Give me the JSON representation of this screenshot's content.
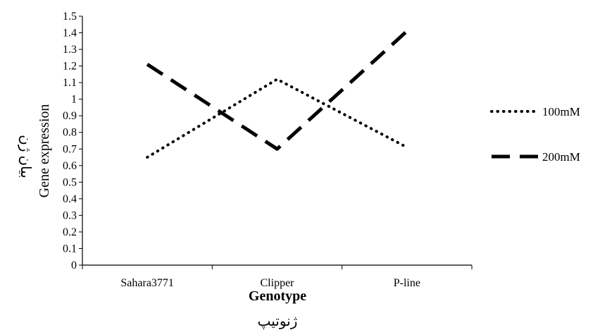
{
  "chart_data": {
    "type": "line",
    "categories": [
      "Sahara3771",
      "Clipper",
      "P-line"
    ],
    "series": [
      {
        "name": "100mM",
        "values": [
          0.65,
          1.12,
          0.71
        ],
        "dash": "dotted",
        "color": "#000000"
      },
      {
        "name": "200mM",
        "values": [
          1.21,
          0.7,
          1.41
        ],
        "dash": "dashed",
        "color": "#000000"
      }
    ],
    "ylim": [
      0,
      1.5
    ],
    "ytick_step": 0.1,
    "yticks": [
      "0",
      "0.1",
      "0.2",
      "0.3",
      "0.4",
      "0.5",
      "0.6",
      "0.7",
      "0.8",
      "0.9",
      "1",
      "1.1",
      "1.2",
      "1.3",
      "1.4",
      "1.5"
    ],
    "xlabel": "Genotype",
    "xlabel_fa": "ژنوتیپ",
    "ylabel": "Gene expression",
    "ylabel_fa": "بیان ژن",
    "legend_position": "right",
    "grid": false
  }
}
